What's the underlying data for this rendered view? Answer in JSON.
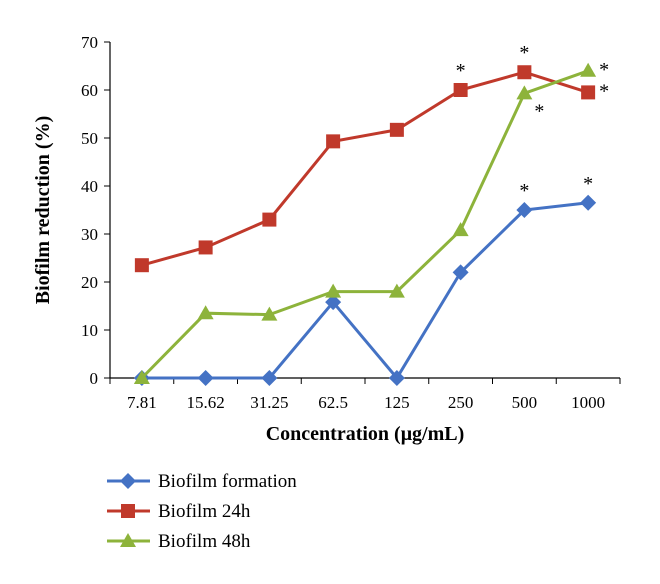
{
  "chart_data": {
    "type": "line",
    "xlabel": "Concentration (μg/mL)",
    "ylabel": "Biofilm reduction (%)",
    "categories": [
      "7.81",
      "15.62",
      "31.25",
      "62.5",
      "125",
      "250",
      "500",
      "1000"
    ],
    "ylim": [
      0,
      70
    ],
    "yticks": [
      0,
      10,
      20,
      30,
      40,
      50,
      60,
      70
    ],
    "grid": false,
    "legend_position": "bottom-left",
    "series": [
      {
        "name": "Biofilm formation",
        "color": "#4472c4",
        "marker": "diamond",
        "values": [
          0,
          0,
          0,
          15.8,
          0,
          22,
          35,
          36.5
        ]
      },
      {
        "name": "Biofilm 24h",
        "color": "#c0392b",
        "marker": "square",
        "values": [
          23.5,
          27.2,
          33,
          49.3,
          51.7,
          60,
          63.7,
          59.5
        ]
      },
      {
        "name": "Biofilm 48h",
        "color": "#8db33b",
        "marker": "triangle",
        "values": [
          0,
          13.5,
          13.2,
          18,
          18,
          30.8,
          59.3,
          64
        ]
      }
    ],
    "annotations": [
      {
        "series": 1,
        "index": 5,
        "text": "*",
        "pos": "above"
      },
      {
        "series": 1,
        "index": 6,
        "text": "*",
        "pos": "above"
      },
      {
        "series": 1,
        "index": 7,
        "text": "*",
        "pos": "right"
      },
      {
        "series": 2,
        "index": 6,
        "text": "*",
        "pos": "below-right"
      },
      {
        "series": 2,
        "index": 7,
        "text": "*",
        "pos": "right"
      },
      {
        "series": 0,
        "index": 6,
        "text": "*",
        "pos": "above"
      },
      {
        "series": 0,
        "index": 7,
        "text": "*",
        "pos": "above"
      }
    ]
  }
}
